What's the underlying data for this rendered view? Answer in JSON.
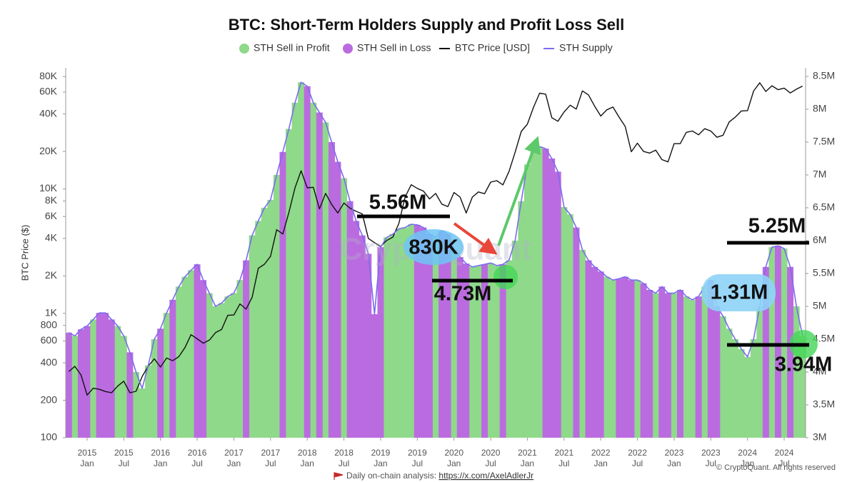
{
  "chart_data": {
    "type": "combo",
    "title": "BTC: Short-Term Holders Supply and Profit Loss Sell",
    "y_label": "BTC Price ($)",
    "watermark": "CryptoQuant",
    "yscale": "log",
    "xlim": [
      "2014-10",
      "2024-10"
    ],
    "ylim": [
      100,
      94000
    ],
    "y2lim": [
      3000000,
      8630000
    ],
    "xticks": [
      {
        "value": "2015-01",
        "label": [
          "2015",
          "Jan"
        ]
      },
      {
        "value": "2015-07",
        "label": [
          "2015",
          "Jul"
        ]
      },
      {
        "value": "2016-01",
        "label": [
          "2016",
          "Jan"
        ]
      },
      {
        "value": "2016-07",
        "label": [
          "2016",
          "Jul"
        ]
      },
      {
        "value": "2017-01",
        "label": [
          "2017",
          "Jan"
        ]
      },
      {
        "value": "2017-07",
        "label": [
          "2017",
          "Jul"
        ]
      },
      {
        "value": "2018-01",
        "label": [
          "2018",
          "Jan"
        ]
      },
      {
        "value": "2018-07",
        "label": [
          "2018",
          "Jul"
        ]
      },
      {
        "value": "2019-01",
        "label": [
          "2019",
          "Jan"
        ]
      },
      {
        "value": "2019-07",
        "label": [
          "2019",
          "Jul"
        ]
      },
      {
        "value": "2020-01",
        "label": [
          "2020",
          "Jan"
        ]
      },
      {
        "value": "2020-07",
        "label": [
          "2020",
          "Jul"
        ]
      },
      {
        "value": "2021-01",
        "label": [
          "2021",
          "Jan"
        ]
      },
      {
        "value": "2021-07",
        "label": [
          "2021",
          "Jul"
        ]
      },
      {
        "value": "2022-01",
        "label": [
          "2022",
          "Jan"
        ]
      },
      {
        "value": "2022-07",
        "label": [
          "2022",
          "Jul"
        ]
      },
      {
        "value": "2023-01",
        "label": [
          "2023",
          "Jan"
        ]
      },
      {
        "value": "2023-07",
        "label": [
          "2023",
          "Jul"
        ]
      },
      {
        "value": "2024-01",
        "label": [
          "2024",
          "Jan"
        ]
      },
      {
        "value": "2024-07",
        "label": [
          "2024",
          "Jul"
        ]
      }
    ],
    "yticks": [
      100,
      200,
      400,
      600,
      800,
      {
        "value": 1000,
        "label": "1K"
      },
      {
        "value": 2000,
        "label": "2K"
      },
      {
        "value": 4000,
        "label": "4K"
      },
      {
        "value": 6000,
        "label": "6K"
      },
      {
        "value": 8000,
        "label": "8K"
      },
      {
        "value": 10000,
        "label": "10K"
      },
      {
        "value": 20000,
        "label": "20K"
      },
      {
        "value": 40000,
        "label": "40K"
      },
      {
        "value": 60000,
        "label": "60K"
      },
      {
        "value": 80000,
        "label": "80K"
      }
    ],
    "y2ticks": [
      {
        "value": 3000000,
        "label": "3M"
      },
      {
        "value": 3500000,
        "label": "3.5M"
      },
      {
        "value": 4000000,
        "label": "4M"
      },
      {
        "value": 4500000,
        "label": "4.5M"
      },
      {
        "value": 5000000,
        "label": "5M"
      },
      {
        "value": 5500000,
        "label": "5.5M"
      },
      {
        "value": 6000000,
        "label": "6M"
      },
      {
        "value": 6500000,
        "label": "6.5M"
      },
      {
        "value": 7000000,
        "label": "7M"
      },
      {
        "value": 7500000,
        "label": "7.5M"
      },
      {
        "value": 8000000,
        "label": "8M"
      },
      {
        "value": 8500000,
        "label": "8.5M"
      }
    ],
    "x": [
      "2014-10",
      "2014-11",
      "2014-12",
      "2015-01",
      "2015-02",
      "2015-03",
      "2015-04",
      "2015-05",
      "2015-06",
      "2015-07",
      "2015-08",
      "2015-09",
      "2015-10",
      "2015-11",
      "2015-12",
      "2016-01",
      "2016-02",
      "2016-03",
      "2016-04",
      "2016-05",
      "2016-06",
      "2016-07",
      "2016-08",
      "2016-09",
      "2016-10",
      "2016-11",
      "2016-12",
      "2017-01",
      "2017-02",
      "2017-03",
      "2017-04",
      "2017-05",
      "2017-06",
      "2017-07",
      "2017-08",
      "2017-09",
      "2017-10",
      "2017-11",
      "2017-12",
      "2018-01",
      "2018-02",
      "2018-03",
      "2018-04",
      "2018-05",
      "2018-06",
      "2018-07",
      "2018-08",
      "2018-09",
      "2018-10",
      "2018-11",
      "2018-12",
      "2019-01",
      "2019-02",
      "2019-03",
      "2019-04",
      "2019-05",
      "2019-06",
      "2019-07",
      "2019-08",
      "2019-09",
      "2019-10",
      "2019-11",
      "2019-12",
      "2020-01",
      "2020-02",
      "2020-03",
      "2020-04",
      "2020-05",
      "2020-06",
      "2020-07",
      "2020-08",
      "2020-09",
      "2020-10",
      "2020-11",
      "2020-12",
      "2021-01",
      "2021-02",
      "2021-03",
      "2021-04",
      "2021-05",
      "2021-06",
      "2021-07",
      "2021-08",
      "2021-09",
      "2021-10",
      "2021-11",
      "2021-12",
      "2022-01",
      "2022-02",
      "2022-03",
      "2022-04",
      "2022-05",
      "2022-06",
      "2022-07",
      "2022-08",
      "2022-09",
      "2022-10",
      "2022-11",
      "2022-12",
      "2023-01",
      "2023-02",
      "2023-03",
      "2023-04",
      "2023-05",
      "2023-06",
      "2023-07",
      "2023-08",
      "2023-09",
      "2023-10",
      "2023-11",
      "2023-12",
      "2024-01",
      "2024-02",
      "2024-03",
      "2024-04",
      "2024-05",
      "2024-06",
      "2024-07",
      "2024-08",
      "2024-09",
      "2024-10"
    ],
    "series": [
      {
        "name": "STH Sell in Profit",
        "type": "bar",
        "axis": "y2",
        "color": "#8fd98a",
        "values": [
          null,
          4550000,
          null,
          null,
          4800000,
          null,
          null,
          null,
          4700000,
          4550000,
          null,
          4000000,
          3750000,
          4100000,
          4500000,
          null,
          4900000,
          null,
          5300000,
          5450000,
          5550000,
          null,
          null,
          5200000,
          5000000,
          5050000,
          5150000,
          5200000,
          5400000,
          null,
          6080000,
          6300000,
          6500000,
          6620000,
          7000000,
          null,
          7700000,
          8100000,
          8410000,
          null,
          8100000,
          null,
          7800000,
          null,
          null,
          6950000,
          null,
          null,
          null,
          null,
          null,
          null,
          6050000,
          6100000,
          6180000,
          6200000,
          6250000,
          null,
          null,
          null,
          6050000,
          null,
          null,
          5860000,
          null,
          null,
          5600000,
          5620000,
          null,
          5660000,
          5620000,
          null,
          5700000,
          6000000,
          6600000,
          7160000,
          7350000,
          7430000,
          null,
          null,
          null,
          6510000,
          6400000,
          null,
          5860000,
          null,
          null,
          null,
          5450000,
          5400000,
          null,
          null,
          null,
          5400000,
          null,
          null,
          5200000,
          null,
          null,
          5200000,
          null,
          5150000,
          5100000,
          null,
          5300000,
          null,
          null,
          4850000,
          4660000,
          4500000,
          4350000,
          4230000,
          4500000,
          5000000,
          null,
          5900000,
          null,
          5880000,
          null,
          5000000,
          4550000
        ]
      },
      {
        "name": "STH Sell in Loss",
        "type": "bar",
        "axis": "y2",
        "color": "#bb6be0",
        "values": [
          4600000,
          null,
          4650000,
          4700000,
          null,
          4900000,
          4900000,
          4800000,
          null,
          null,
          4300000,
          null,
          null,
          null,
          null,
          4660000,
          null,
          5100000,
          null,
          null,
          null,
          5640000,
          5400000,
          null,
          null,
          null,
          null,
          null,
          null,
          5700000,
          null,
          null,
          null,
          null,
          null,
          7350000,
          null,
          null,
          null,
          8350000,
          null,
          7950000,
          null,
          7500000,
          7200000,
          null,
          6600000,
          6300000,
          6080000,
          5800000,
          4880000,
          5900000,
          null,
          null,
          null,
          null,
          null,
          6240000,
          6200000,
          6100000,
          null,
          6150000,
          6100000,
          null,
          5750000,
          5650000,
          null,
          null,
          5640000,
          null,
          null,
          5640000,
          null,
          null,
          null,
          null,
          null,
          null,
          7400000,
          7250000,
          7050000,
          null,
          null,
          6200000,
          null,
          5700000,
          5600000,
          5530000,
          null,
          null,
          5420000,
          5450000,
          5400000,
          null,
          5350000,
          5250000,
          null,
          5300000,
          5200000,
          null,
          5250000,
          null,
          null,
          5150000,
          null,
          5400000,
          5000000,
          null,
          null,
          null,
          null,
          null,
          null,
          null,
          5600000,
          null,
          5920000,
          null,
          5600000,
          null,
          null
        ]
      },
      {
        "name": "BTC Price [USD]",
        "type": "line",
        "axis": "y",
        "color": "#111111",
        "values": [
          340,
          375,
          320,
          220,
          250,
          245,
          235,
          230,
          260,
          285,
          230,
          236,
          310,
          377,
          430,
          370,
          437,
          416,
          448,
          531,
          673,
          624,
          575,
          609,
          700,
          742,
          963,
          970,
          1190,
          1080,
          1350,
          2300,
          2480,
          2875,
          4700,
          4340,
          6470,
          10200,
          14000,
          10200,
          10300,
          6900,
          9200,
          7500,
          6400,
          7700,
          7000,
          6600,
          6300,
          4000,
          3700,
          3450,
          3850,
          4100,
          5300,
          8600,
          10800,
          10100,
          9600,
          8300,
          9200,
          7550,
          7200,
          9350,
          8600,
          6400,
          8600,
          9450,
          9140,
          11350,
          11650,
          10780,
          13800,
          19700,
          29000,
          33100,
          45200,
          58800,
          57700,
          37300,
          35000,
          41500,
          47100,
          43800,
          61300,
          57000,
          46300,
          38500,
          43200,
          45500,
          37700,
          31800,
          19900,
          23300,
          20000,
          19400,
          20500,
          17200,
          16500,
          23100,
          23100,
          28500,
          29200,
          27200,
          30500,
          29200,
          26000,
          27000,
          34500,
          37700,
          42300,
          42600,
          61200,
          71300,
          60700,
          67500,
          62700,
          64600,
          59000,
          63300,
          67000
        ]
      },
      {
        "name": "STH Supply",
        "type": "line",
        "axis": "y2",
        "color": "#7a6cf0",
        "values": [
          4600000,
          4550000,
          4650000,
          4700000,
          4800000,
          4900000,
          4900000,
          4800000,
          4700000,
          4550000,
          4300000,
          4000000,
          3750000,
          4100000,
          4500000,
          4660000,
          4900000,
          5100000,
          5300000,
          5450000,
          5550000,
          5640000,
          5400000,
          5200000,
          5000000,
          5050000,
          5150000,
          5200000,
          5400000,
          5700000,
          6080000,
          6300000,
          6500000,
          6620000,
          7000000,
          7350000,
          7700000,
          8100000,
          8410000,
          8350000,
          8100000,
          7950000,
          7800000,
          7500000,
          7200000,
          6950000,
          6600000,
          6300000,
          6080000,
          5800000,
          4880000,
          5900000,
          6050000,
          6100000,
          6180000,
          6200000,
          6250000,
          6240000,
          6200000,
          6100000,
          6050000,
          6150000,
          6100000,
          5860000,
          5750000,
          5650000,
          5600000,
          5620000,
          5640000,
          5660000,
          5620000,
          5640000,
          5700000,
          6000000,
          6600000,
          7160000,
          7350000,
          7430000,
          7400000,
          7250000,
          7050000,
          6510000,
          6400000,
          6200000,
          5860000,
          5700000,
          5600000,
          5530000,
          5450000,
          5400000,
          5420000,
          5450000,
          5400000,
          5400000,
          5350000,
          5250000,
          5200000,
          5300000,
          5200000,
          5200000,
          5250000,
          5150000,
          5100000,
          5150000,
          5300000,
          5400000,
          5000000,
          4850000,
          4660000,
          4500000,
          4350000,
          4230000,
          4500000,
          5000000,
          5600000,
          5900000,
          5920000,
          5880000,
          5600000,
          5000000,
          4550000
        ]
      }
    ],
    "annotations": [
      "5.56M",
      "830K",
      "4.73M",
      "5.25M",
      "1,31M",
      "3.94M"
    ]
  },
  "footer": {
    "text": "Daily on-chain analysis:",
    "link": "https://x.com/AxelAdlerJr",
    "copyright": "© CryptoQuant. All rights reserved"
  }
}
